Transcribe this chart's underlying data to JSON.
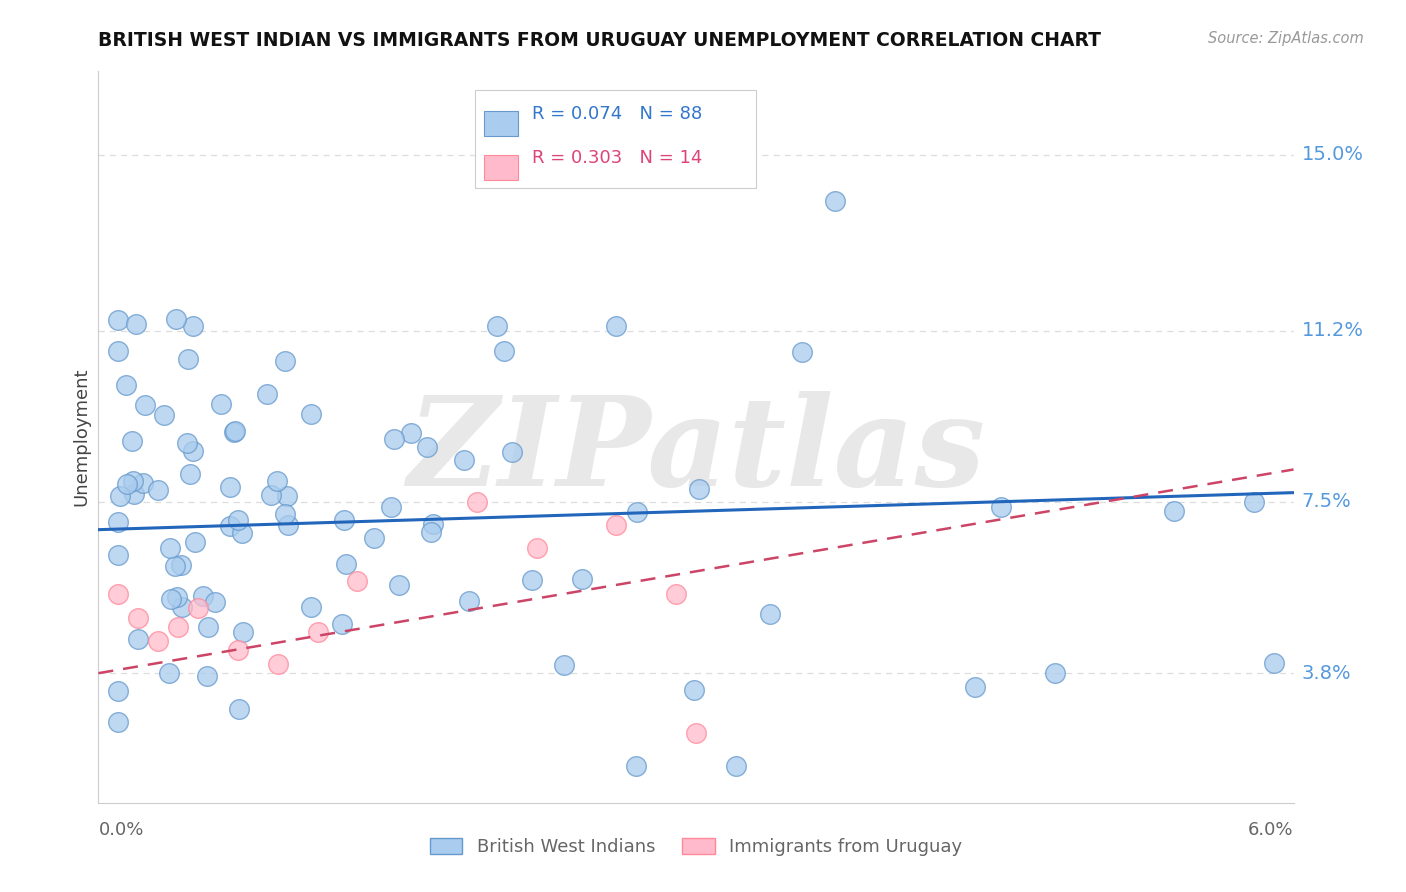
{
  "title": "BRITISH WEST INDIAN VS IMMIGRANTS FROM URUGUAY UNEMPLOYMENT CORRELATION CHART",
  "source": "Source: ZipAtlas.com",
  "ylabel": "Unemployment",
  "ytick_labels": [
    "15.0%",
    "11.2%",
    "7.5%",
    "3.8%"
  ],
  "ytick_values": [
    0.15,
    0.112,
    0.075,
    0.038
  ],
  "xlim": [
    0.0,
    0.06
  ],
  "ylim": [
    0.01,
    0.168
  ],
  "blue_color_face": "#AACCEE",
  "blue_color_edge": "#6699CC",
  "pink_color_face": "#FFBBCC",
  "pink_color_edge": "#FF8899",
  "trendline_blue": "#2266BB",
  "trendline_pink": "#CC4466",
  "grid_color": "#DDDDDD",
  "watermark": "ZIPatlas",
  "watermark_color": "#DDDDDD",
  "legend_text_blue": "R = 0.074   N = 88",
  "legend_text_pink": "R = 0.303   N = 14",
  "legend_label_blue": "British West Indians",
  "legend_label_pink": "Immigrants from Uruguay",
  "blue_trend_x0": 0.0,
  "blue_trend_x1": 0.06,
  "blue_trend_y0": 0.069,
  "blue_trend_y1": 0.077,
  "pink_trend_x0": 0.0,
  "pink_trend_x1": 0.06,
  "pink_trend_y0": 0.038,
  "pink_trend_y1": 0.082
}
